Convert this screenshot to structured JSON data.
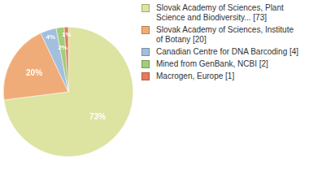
{
  "chart_data": {
    "type": "pie",
    "categories": [
      "Slovak Academy of Sciences, Plant Science and Biodiversity... [73]",
      "Slovak Academy of Sciences, Institute of Botany [20]",
      "Canadian Centre for DNA Barcoding [4]",
      "Mined from GenBank, NCBI [2]",
      "Macrogen, Europe [1]"
    ],
    "values": [
      73,
      20,
      4,
      2,
      1
    ],
    "value_labels": [
      "73%",
      "20%",
      "4%",
      "2%",
      "1%"
    ],
    "colors": [
      "#dde3a1",
      "#f0ac78",
      "#a3bfde",
      "#a2cd79",
      "#e8795c"
    ],
    "data_labels": true,
    "legend": "right"
  }
}
